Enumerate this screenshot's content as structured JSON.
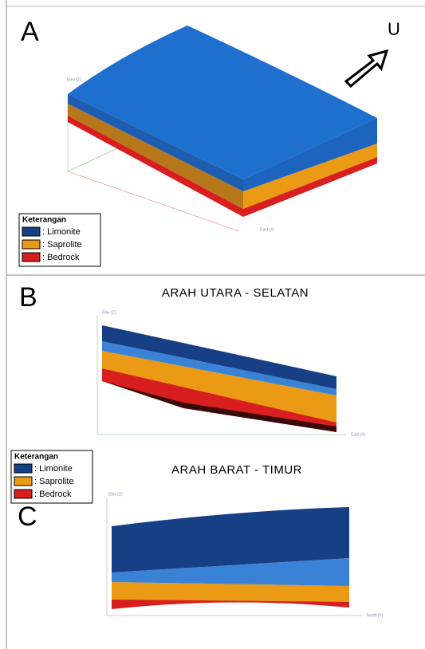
{
  "panels": [
    {
      "label": "A",
      "north_arrow": "U",
      "axis_z": "Elev (Z)",
      "axis_x": "East (X)",
      "legend": {
        "title": "Keterangan",
        "items": [
          {
            "name": ": Limonite",
            "color": "#163f86"
          },
          {
            "name": ": Saprolite",
            "color": "#eb9a16"
          },
          {
            "name": ": Bedrock",
            "color": "#d81e1e"
          }
        ]
      }
    },
    {
      "label": "B",
      "title": "ARAH UTARA - SELATAN",
      "axis_z": "Elev (Z)",
      "axis_x": "East (X)",
      "legend": {
        "title": "Keterangan",
        "items": [
          {
            "name": ": Limonite",
            "color": "#163f86"
          },
          {
            "name": ": Saprolite",
            "color": "#eb9a16"
          },
          {
            "name": ": Bedrock",
            "color": "#d81e1e"
          }
        ]
      }
    },
    {
      "label": "C",
      "title": "ARAH BARAT - TIMUR",
      "axis_z": "Elev (Z)",
      "axis_x": "North (Y)"
    }
  ]
}
